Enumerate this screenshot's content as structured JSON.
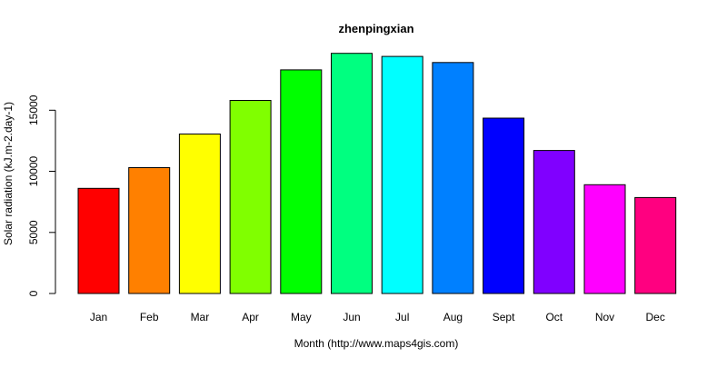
{
  "chart_data": {
    "type": "bar",
    "title": "zhenpingxian",
    "xlabel": "Month (http://www.maps4gis.com)",
    "ylabel": "Solar radiation (kJ.m-2.day-1)",
    "categories": [
      "Jan",
      "Feb",
      "Mar",
      "Apr",
      "May",
      "Jun",
      "Jul",
      "Aug",
      "Sept",
      "Oct",
      "Nov",
      "Dec"
    ],
    "values": [
      8600,
      10300,
      13050,
      15800,
      18300,
      19650,
      19400,
      18900,
      14350,
      11700,
      8900,
      7850
    ],
    "colors": [
      "#ff0000",
      "#ff8000",
      "#ffff00",
      "#80ff00",
      "#00ff00",
      "#00ff80",
      "#00ffff",
      "#0080ff",
      "#0000ff",
      "#8000ff",
      "#ff00ff",
      "#ff0080"
    ],
    "ylim": [
      0,
      20000
    ],
    "yticks": [
      "0",
      "5000",
      "10000",
      "15000"
    ],
    "grid": false,
    "legend": false
  }
}
